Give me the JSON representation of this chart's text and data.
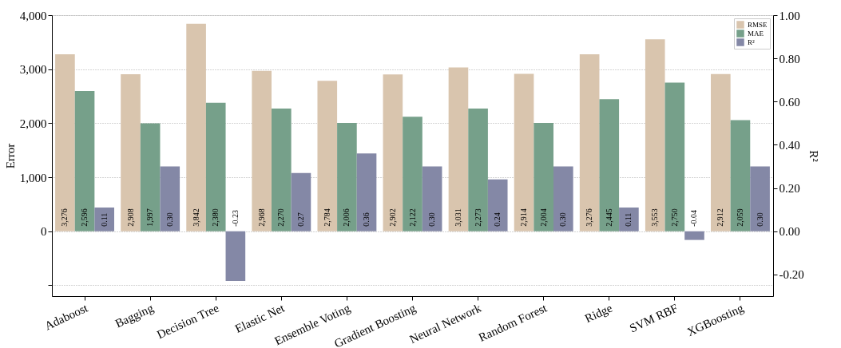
{
  "chart_data": {
    "type": "bar",
    "ylabel": "Error",
    "y2label": "R²",
    "categories": [
      "Adaboost",
      "Bagging",
      "Decision Tree",
      "Elastic Net",
      "Ensemble Voting",
      "Gradient Boosting",
      "Neural Network",
      "Random Forest",
      "Ridge",
      "SVM RBF",
      "XGBoosting"
    ],
    "series": [
      {
        "name": "RMSE",
        "color": "#d9c5ae",
        "values": [
          3276,
          2908,
          3842,
          2968,
          2784,
          2902,
          3031,
          2914,
          3276,
          3553,
          2912
        ],
        "value_labels": [
          "3,276",
          "2,908",
          "3,842",
          "2,968",
          "2,784",
          "2,902",
          "3,031",
          "2,914",
          "3,276",
          "3,553",
          "2,912"
        ]
      },
      {
        "name": "MAE",
        "color": "#76a08a",
        "values": [
          2596,
          1997,
          2380,
          2270,
          2006,
          2122,
          2273,
          2004,
          2445,
          2750,
          2059
        ],
        "value_labels": [
          "2,596",
          "1,997",
          "2,380",
          "2,270",
          "2,006",
          "2,122",
          "2,273",
          "2,004",
          "2,445",
          "2,750",
          "2,059"
        ]
      },
      {
        "name": "R²",
        "color": "#8488a6",
        "axis": "y2",
        "values": [
          0.11,
          0.3,
          -0.23,
          0.27,
          0.36,
          0.3,
          0.24,
          0.3,
          0.11,
          -0.04,
          0.3
        ],
        "value_labels": [
          "0.11",
          "0.30",
          "-0.23",
          "0.27",
          "0.36",
          "0.30",
          "0.24",
          "0.30",
          "0.11",
          "-0.04",
          "0.30"
        ]
      }
    ],
    "ylim": [
      -1200,
      4000
    ],
    "yticks": [
      {
        "value": -1000,
        "label": null
      },
      0,
      {
        "value": 1000,
        "label": "1,000"
      },
      {
        "value": 2000,
        "label": "2,000"
      },
      {
        "value": 3000,
        "label": "3,000"
      },
      {
        "value": 4000,
        "label": "4,000"
      }
    ],
    "y2lim": [
      -0.3,
      1.0
    ],
    "y2ticks": [
      {
        "value": -0.2,
        "label": "-0.20"
      },
      {
        "value": 0,
        "label": "0.00"
      },
      {
        "value": 0.2,
        "label": "0.20"
      },
      {
        "value": 0.4,
        "label": "0.40"
      },
      {
        "value": 0.6,
        "label": "0.60"
      },
      {
        "value": 0.8,
        "label": "0.80"
      },
      {
        "value": 1.0,
        "label": "1.00"
      }
    ],
    "grid": "y",
    "legend": "top right"
  }
}
